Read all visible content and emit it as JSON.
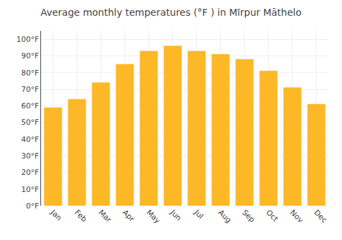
{
  "chart_data": {
    "type": "bar",
    "title": "Average monthly temperatures (°F ) in Mīrpur Māthelo",
    "categories": [
      "Jan",
      "Feb",
      "Mar",
      "Apr",
      "May",
      "Jun",
      "Jul",
      "Aug",
      "Sep",
      "Oct",
      "Nov",
      "Dec"
    ],
    "values": [
      59,
      64,
      74,
      85,
      93,
      96,
      93,
      91,
      88,
      81,
      71,
      61
    ],
    "color": "#FDB827",
    "ylim": [
      0,
      105
    ],
    "yticks": [
      {
        "value": 0,
        "label": "0°F"
      },
      {
        "value": 10,
        "label": "10°F"
      },
      {
        "value": 20,
        "label": "20°F"
      },
      {
        "value": 30,
        "label": "30°F"
      },
      {
        "value": 40,
        "label": "40°F"
      },
      {
        "value": 50,
        "label": "50°F"
      },
      {
        "value": 60,
        "label": "60°F"
      },
      {
        "value": 70,
        "label": "70°F"
      },
      {
        "value": 80,
        "label": "80°F"
      },
      {
        "value": 90,
        "label": "90°F"
      },
      {
        "value": 100,
        "label": "100°F"
      }
    ],
    "grid": true
  }
}
